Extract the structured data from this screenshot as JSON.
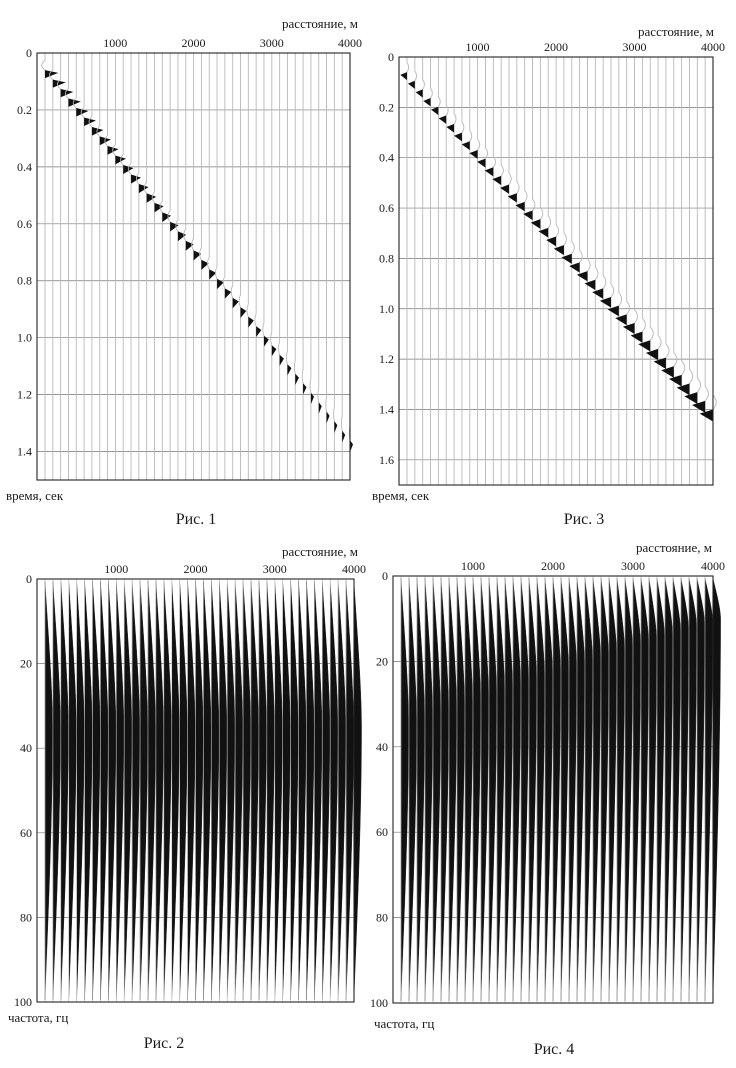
{
  "chart_data": [
    {
      "type": "seismic-gather",
      "caption": "Рис. 1",
      "xlabel": "расстояние, м",
      "ylabel": "время, сек",
      "x_ticks": [
        "1000",
        "2000",
        "3000",
        "4000"
      ],
      "y_ticks": [
        "0",
        "0.2",
        "0.4",
        "0.6",
        "0.8",
        "1.0",
        "1.2",
        "1.4"
      ],
      "xlim": [
        0,
        4000
      ],
      "ylim": [
        0,
        1.5
      ],
      "trace_count": 40,
      "arrival_time": [
        0.06,
        1.36
      ],
      "amplitude": [
        1.0,
        0.12
      ],
      "polarity": "positive-filled",
      "grid": true
    },
    {
      "type": "amplitude-spectrum",
      "caption": "Рис. 2",
      "xlabel": "расстояние, м",
      "ylabel": "частота, гц",
      "x_ticks": [
        "1000",
        "2000",
        "3000",
        "4000"
      ],
      "y_ticks": [
        "0",
        "20",
        "40",
        "60",
        "80",
        "100"
      ],
      "xlim": [
        0,
        4000
      ],
      "ylim": [
        0,
        100
      ],
      "trace_count": 40,
      "peak_frequency": [
        35,
        35
      ],
      "grid": true
    },
    {
      "type": "seismic-gather",
      "caption": "Рис. 3",
      "xlabel": "расстояние, м",
      "ylabel": "время, сек",
      "x_ticks": [
        "1000",
        "2000",
        "3000",
        "4000"
      ],
      "y_ticks": [
        "0",
        "0.2",
        "0.4",
        "0.6",
        "0.8",
        "1.0",
        "1.2",
        "1.4",
        "1.6"
      ],
      "xlim": [
        0,
        4000
      ],
      "ylim": [
        0,
        1.7
      ],
      "trace_count": 40,
      "arrival_time": [
        0.06,
        1.4
      ],
      "amplitude": [
        0.5,
        1.0
      ],
      "polarity": "negative-filled",
      "grid": true
    },
    {
      "type": "amplitude-spectrum",
      "caption": "Рис. 4",
      "xlabel": "расстояние, м",
      "ylabel": "частота, гц",
      "x_ticks": [
        "1000",
        "2000",
        "3000",
        "4000"
      ],
      "y_ticks": [
        "0",
        "20",
        "40",
        "60",
        "80",
        "100"
      ],
      "xlim": [
        0,
        4000
      ],
      "ylim": [
        0,
        100
      ],
      "trace_count": 40,
      "peak_frequency": [
        35,
        10
      ],
      "grid": true
    }
  ],
  "colors": {
    "grid": "#777777",
    "trace": "#b8b8b8",
    "fill": "#111111",
    "frame": "#222222"
  }
}
